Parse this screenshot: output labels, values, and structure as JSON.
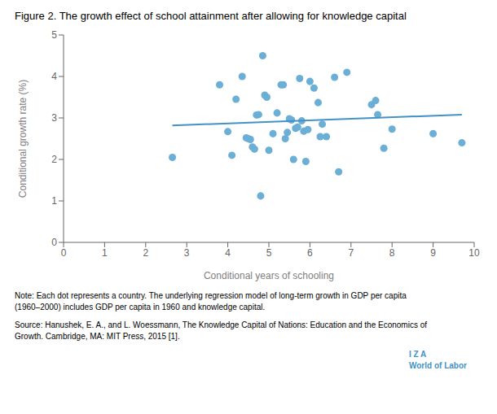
{
  "chart_data": {
    "type": "scatter",
    "title": "Figure 2. The growth effect of school attainment after allowing for knowledge capital",
    "x_label": "Conditional years of schooling",
    "y_label": "Conditional growth rate (%)",
    "xlim": [
      0,
      10
    ],
    "ylim": [
      0,
      5
    ],
    "xticks": [
      0,
      1,
      2,
      3,
      4,
      5,
      6,
      7,
      8,
      9,
      10
    ],
    "yticks": [
      0,
      1,
      2,
      3,
      4,
      5
    ],
    "grid": false,
    "series": [
      {
        "type": "scatter",
        "color": "#6baed6",
        "x": [
          2.65,
          3.8,
          4.0,
          4.1,
          4.2,
          4.35,
          4.45,
          4.5,
          4.55,
          4.6,
          4.65,
          4.7,
          4.75,
          4.8,
          4.85,
          4.9,
          4.95,
          5.0,
          5.1,
          5.2,
          5.3,
          5.35,
          5.4,
          5.45,
          5.5,
          5.55,
          5.6,
          5.65,
          5.7,
          5.75,
          5.8,
          5.85,
          5.9,
          5.95,
          6.0,
          6.1,
          6.2,
          6.25,
          6.3,
          6.4,
          6.6,
          6.7,
          6.9,
          7.5,
          7.6,
          7.65,
          7.8,
          8.0,
          9.0,
          9.7
        ],
        "values": [
          2.05,
          3.8,
          2.67,
          2.1,
          3.45,
          4.0,
          2.52,
          2.5,
          2.48,
          2.3,
          2.25,
          3.07,
          3.08,
          1.12,
          4.5,
          3.55,
          3.5,
          2.22,
          2.62,
          3.12,
          3.8,
          3.8,
          2.5,
          2.65,
          2.98,
          2.95,
          2.0,
          2.75,
          2.78,
          3.95,
          2.93,
          2.68,
          1.95,
          2.72,
          3.88,
          3.72,
          3.37,
          2.55,
          2.85,
          2.55,
          3.98,
          1.7,
          4.1,
          3.32,
          3.42,
          3.08,
          2.27,
          2.73,
          2.62,
          2.4
        ]
      },
      {
        "type": "line",
        "color": "#4292c6",
        "x": [
          2.65,
          9.7
        ],
        "values": [
          2.81805,
          3.0789
        ]
      }
    ],
    "annotations": [
      "Note: Each dot represents a country. The underlying regression model of long-term growth in GDP per capita\n(1960–2000) includes GDP per capita in 1960 and knowledge capital.",
      "Source: Hanushek, E. A., and L. Woessmann, The Knowledge Capital of Nations: Education and the Economics of\nGrowth. Cambridge, MA: MIT Press, 2015 [1].",
      "I Z A\nWorld of Labor"
    ]
  }
}
